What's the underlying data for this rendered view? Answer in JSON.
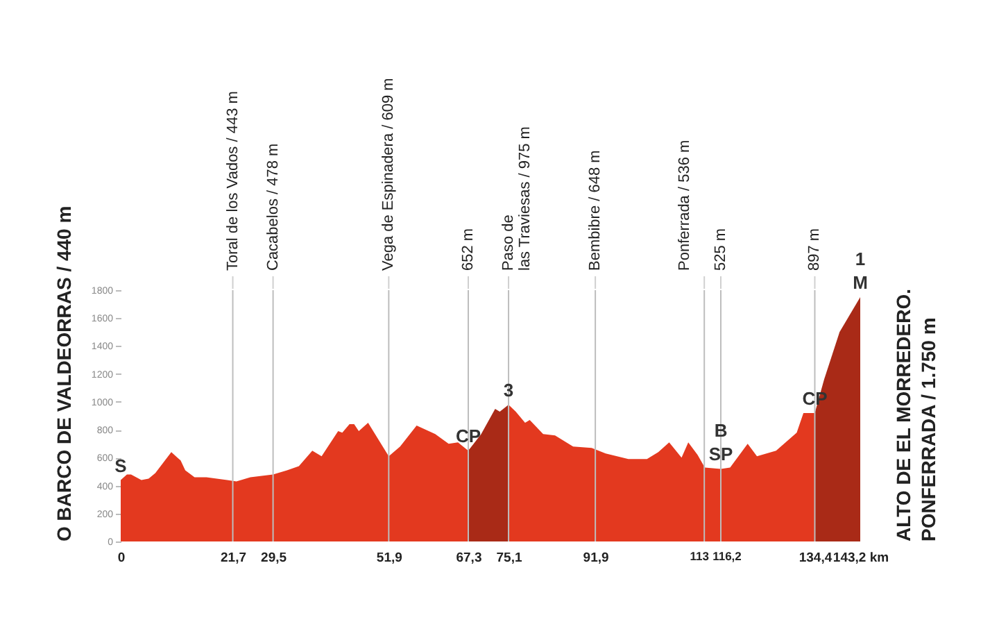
{
  "chart_data": {
    "type": "area",
    "xlim": [
      0,
      143.2
    ],
    "xticks": [
      0,
      {
        "value": 21.7,
        "label": "21,7"
      },
      {
        "value": 29.5,
        "label": "29,5"
      },
      {
        "value": 51.9,
        "label": "51,9"
      },
      {
        "value": 67.3,
        "label": "67,3"
      },
      {
        "value": 75.1,
        "label": "75,1"
      },
      {
        "value": 91.9,
        "label": "91,9"
      },
      113,
      {
        "value": 116.2,
        "label": "116,2"
      },
      {
        "value": 134.4,
        "label": "134,4"
      },
      {
        "value": 143.2,
        "label": "143,2 km"
      }
    ],
    "ylim": [
      0,
      1800
    ],
    "yticks": [
      0,
      200,
      400,
      600,
      800,
      1000,
      1200,
      1400,
      1600,
      1800
    ],
    "grid": false,
    "series": [
      {
        "color": "#e3391f",
        "x": [
          0,
          1.2,
          2.0,
          4.0,
          5.4,
          6.7,
          9.8,
          11.6,
          12.5,
          14.3,
          16.6,
          20.6,
          22.4,
          25.1,
          29.5,
          32.2,
          34.5,
          37.1,
          38.9,
          42.1,
          42.9,
          44.3,
          45.2,
          46.1,
          47.9,
          51.9,
          54.1,
          57.3,
          60.9,
          63.5,
          65.3,
          67.3,
          75.1,
          76.5,
          78.3,
          79.2,
          81.8,
          84.1,
          87.6,
          91.2,
          93.9,
          98.3,
          101.9,
          104.1,
          106.2,
          108.6,
          109.9,
          111.7,
          113.1,
          116.2,
          118.0,
          121.4,
          123.2,
          126.9,
          130.9,
          132.2,
          134.4
        ],
        "values": [
          440,
          480,
          480,
          440,
          450,
          490,
          640,
          580,
          510,
          460,
          460,
          440,
          430,
          460,
          480,
          510,
          540,
          650,
          610,
          790,
          780,
          840,
          840,
          790,
          850,
          610,
          680,
          830,
          770,
          700,
          710,
          650,
          980,
          930,
          850,
          870,
          770,
          760,
          680,
          670,
          630,
          590,
          590,
          640,
          710,
          600,
          710,
          620,
          530,
          520,
          530,
          700,
          610,
          650,
          780,
          920,
          920
        ]
      },
      {
        "color": "#a92a17",
        "x": [
          67.3,
          69.8,
          72.5,
          73.4,
          75.1
        ],
        "values": [
          650,
          770,
          950,
          930,
          980
        ]
      },
      {
        "color": "#a92a17",
        "x": [
          134.4,
          136.2,
          139.2,
          143.2
        ],
        "values": [
          920,
          1160,
          1500,
          1750
        ]
      }
    ],
    "ref_lines": [
      {
        "axis": "x",
        "value": 21.7,
        "label": "Toral de los Vados / 443 m"
      },
      {
        "axis": "x",
        "value": 29.5,
        "label": "Cacabelos / 478 m"
      },
      {
        "axis": "x",
        "value": 51.9,
        "label": "Vega de Espinadera / 609 m"
      },
      {
        "axis": "x",
        "value": 67.3,
        "label": "652 m"
      },
      {
        "axis": "x",
        "value": 75.1,
        "label": "Paso de\nlas Traviesas / 975 m"
      },
      {
        "axis": "x",
        "value": 91.9,
        "label": "Bembibre / 648 m"
      },
      {
        "axis": "x",
        "value": 113,
        "label": "Ponferrada / 536 m"
      },
      {
        "axis": "x",
        "value": 116.2,
        "label": "525 m"
      },
      {
        "axis": "x",
        "value": 134.4,
        "label": "897 m"
      }
    ],
    "annotations": [
      "O BARCO DE VALDEORRAS / 440 m",
      {
        "text": "S",
        "x": 0,
        "y": 440
      },
      {
        "text": "CP",
        "x": 67.3,
        "y": 650
      },
      {
        "text": "3",
        "x": 75.1,
        "y": 980
      },
      {
        "text": "SP",
        "x": 116.2,
        "y": 520
      },
      {
        "text": "B",
        "x": 116.2,
        "y": 520
      },
      {
        "text": "CP",
        "x": 134.4,
        "y": 920
      },
      {
        "text": "M",
        "x": 143.2,
        "y": 1750
      },
      {
        "text": "1",
        "x": 143.2,
        "y": 1750
      },
      "ALTO DE EL MORREDERO.\nPONFERRADA / 1.750 m"
    ]
  }
}
